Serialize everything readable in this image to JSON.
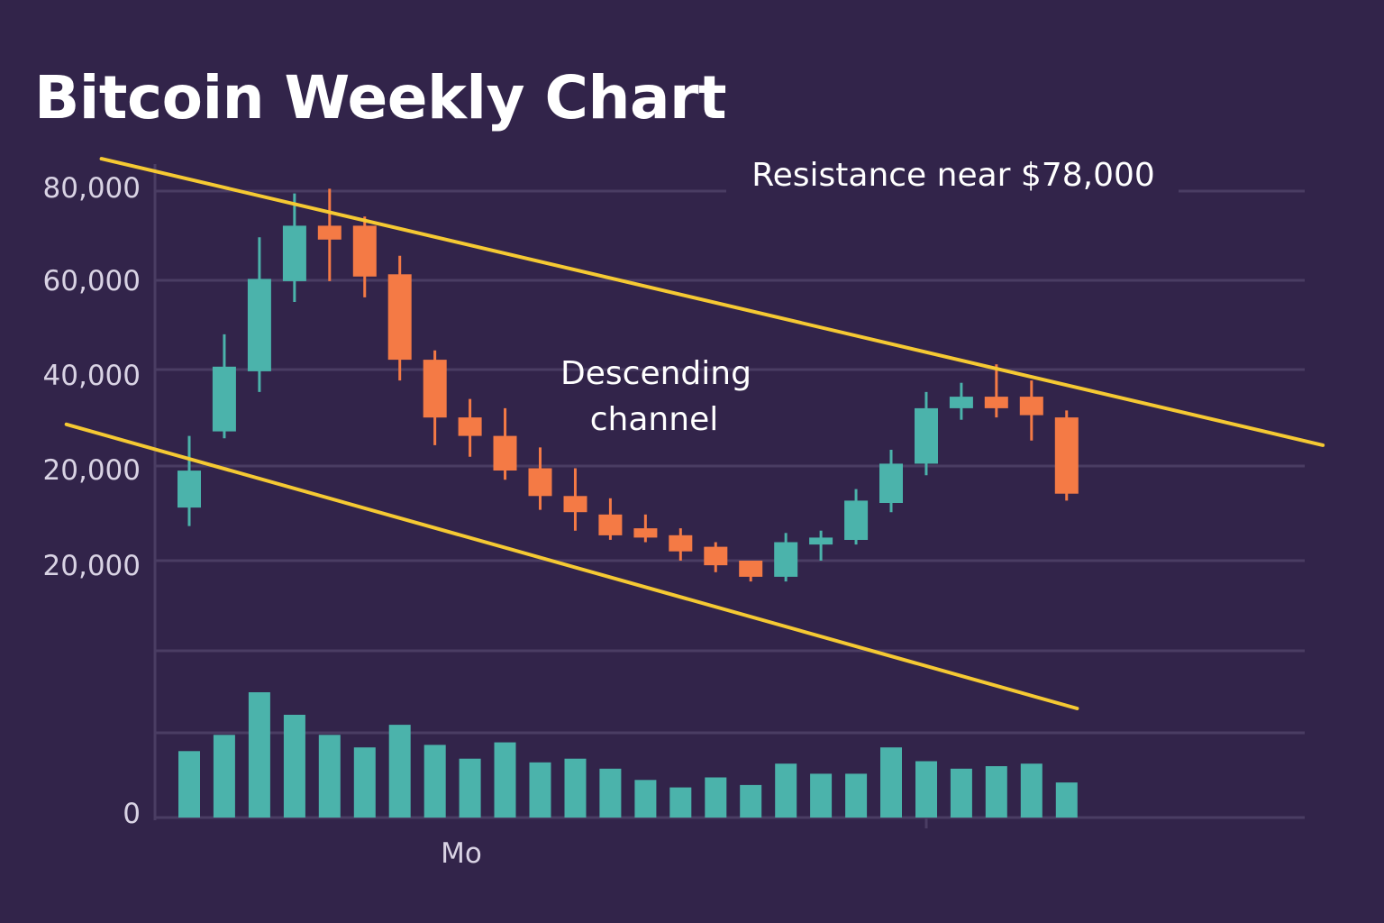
{
  "title": "Bitcoin Weekly Chart",
  "colors": {
    "background": "#32244a",
    "up": "#4bb3ab",
    "down": "#f47a45",
    "channel": "#f5c933",
    "grid": "#4a3d63",
    "text": "#ffffff"
  },
  "chart_data": {
    "type": "candlestick",
    "y_tick_labels": [
      "80,000",
      "60,000",
      "40,000",
      "20,000",
      "20,000"
    ],
    "volume_axis_label": "0",
    "x_tick_labels": [
      "Mo"
    ],
    "ylim": [
      0,
      80000
    ],
    "grid": true,
    "annotations": {
      "resistance": "Resistance near $78,000",
      "channel_line1": "Descending",
      "channel_line2": "channel"
    },
    "candles": [
      {
        "o": 11500,
        "c": 19500,
        "h": 27000,
        "l": 7500
      },
      {
        "o": 28000,
        "c": 42000,
        "h": 49000,
        "l": 26500
      },
      {
        "o": 41000,
        "c": 61000,
        "h": 70000,
        "l": 36500
      },
      {
        "o": 60500,
        "c": 72500,
        "h": 79500,
        "l": 56000
      },
      {
        "o": 72500,
        "c": 69500,
        "h": 80500,
        "l": 60500
      },
      {
        "o": 72500,
        "c": 61500,
        "h": 74500,
        "l": 57000
      },
      {
        "o": 62000,
        "c": 43500,
        "h": 66000,
        "l": 39000
      },
      {
        "o": 43500,
        "c": 31000,
        "h": 45500,
        "l": 25000
      },
      {
        "o": 31000,
        "c": 27000,
        "h": 35000,
        "l": 22500
      },
      {
        "o": 27000,
        "c": 19500,
        "h": 33000,
        "l": 17500
      },
      {
        "o": 20000,
        "c": 14000,
        "h": 24500,
        "l": 11000
      },
      {
        "o": 14000,
        "c": 10500,
        "h": 20000,
        "l": 6500
      },
      {
        "o": 10000,
        "c": 5500,
        "h": 13500,
        "l": 4500
      },
      {
        "o": 7000,
        "c": 5000,
        "h": 10000,
        "l": 4000
      },
      {
        "o": 5500,
        "c": 2000,
        "h": 7000,
        "l": 0
      },
      {
        "o": 3000,
        "c": -1000,
        "h": 4000,
        "l": -2500
      },
      {
        "o": 0,
        "c": -3500,
        "h": 0,
        "l": -4500
      },
      {
        "o": -3500,
        "c": 4000,
        "h": 6000,
        "l": -4500
      },
      {
        "o": 3500,
        "c": 5000,
        "h": 6500,
        "l": 0
      },
      {
        "o": 4500,
        "c": 13000,
        "h": 15500,
        "l": 3500
      },
      {
        "o": 12500,
        "c": 21000,
        "h": 24000,
        "l": 10500
      },
      {
        "o": 21000,
        "c": 33000,
        "h": 36500,
        "l": 18500
      },
      {
        "o": 33000,
        "c": 35500,
        "h": 38500,
        "l": 30500
      },
      {
        "o": 35500,
        "c": 33000,
        "h": 42500,
        "l": 31000
      },
      {
        "o": 35500,
        "c": 31500,
        "h": 39000,
        "l": 26000
      },
      {
        "o": 31000,
        "c": 14500,
        "h": 32500,
        "l": 13000
      }
    ],
    "volume": [
      53,
      66,
      100,
      82,
      66,
      56,
      74,
      58,
      47,
      60,
      44,
      47,
      39,
      30,
      24,
      32,
      26,
      43,
      35,
      35,
      56,
      45,
      39,
      41,
      43,
      28
    ],
    "channel": {
      "upper": [
        [
          -2.5,
          87000
        ],
        [
          32.3,
          25000
        ]
      ],
      "lower": [
        [
          -3.5,
          29500
        ],
        [
          25.3,
          -32000
        ]
      ]
    }
  }
}
